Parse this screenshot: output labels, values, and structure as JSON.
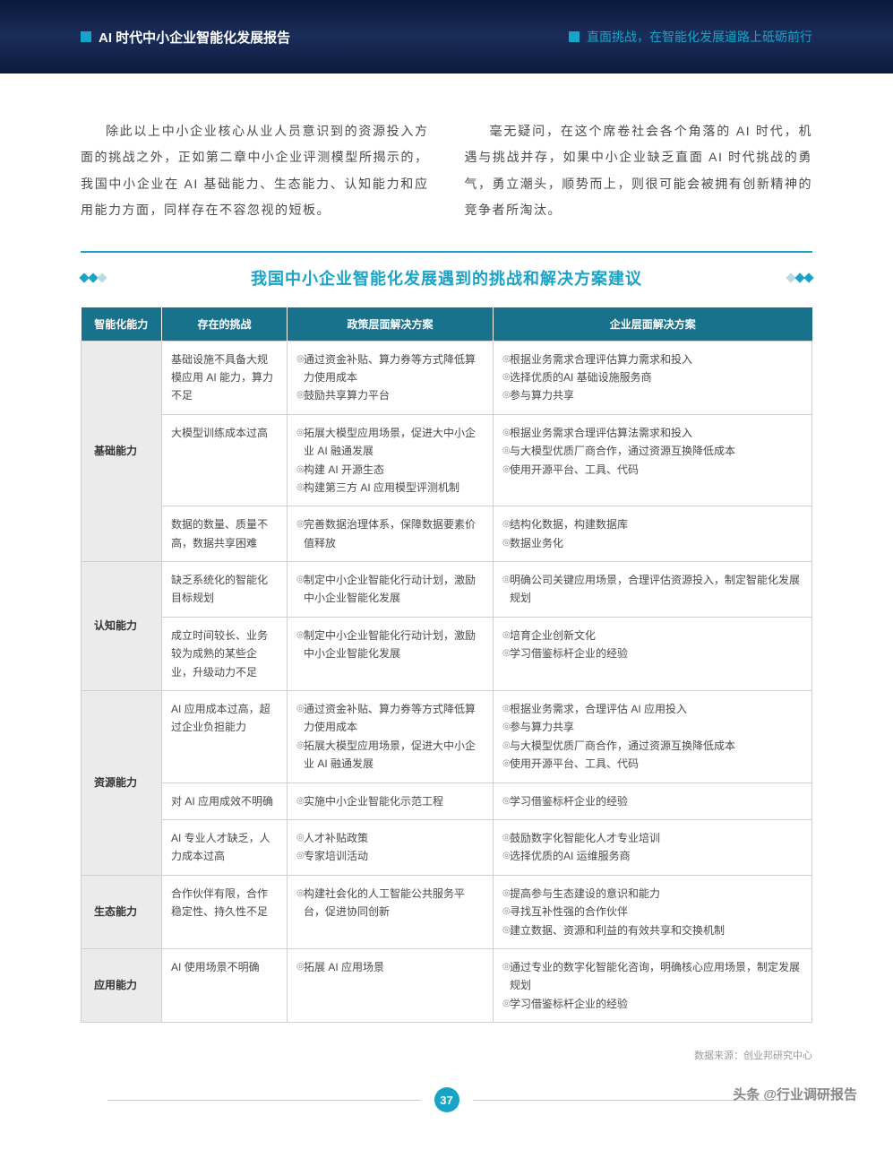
{
  "header": {
    "left_title": "AI 时代中小企业智能化发展报告",
    "right_title": "直面挑战，在智能化发展道路上砥砺前行"
  },
  "body": {
    "paragraph_left": "除此以上中小企业核心从业人员意识到的资源投入方面的挑战之外，正如第二章中小企业评测模型所揭示的，我国中小企业在 AI 基础能力、生态能力、认知能力和应用能力方面，同样存在不容忽视的短板。",
    "paragraph_right": "毫无疑问，在这个席卷社会各个角落的 AI 时代，机遇与挑战并存，如果中小企业缺乏直面 AI 时代挑战的勇气，勇立潮头，顺势而上，则很可能会被拥有创新精神的竞争者所淘汰。"
  },
  "section_title": "我国中小企业智能化发展遇到的挑战和解决方案建议",
  "table": {
    "headers": [
      "智能化能力",
      "存在的挑战",
      "政策层面解决方案",
      "企业层面解决方案"
    ],
    "groups": [
      {
        "category": "基础能力",
        "rows": [
          {
            "challenge": "基础设施不具备大规模应用 AI 能力，算力不足",
            "policy": [
              "通过资金补贴、算力券等方式降低算力使用成本",
              "鼓励共享算力平台"
            ],
            "enterprise": [
              "根据业务需求合理评估算力需求和投入",
              "选择优质的AI 基础设施服务商",
              "参与算力共享"
            ]
          },
          {
            "challenge": "大模型训练成本过高",
            "policy": [
              "拓展大模型应用场景，促进大中小企业 AI 融通发展",
              "构建 AI 开源生态",
              "构建第三方 AI 应用模型评测机制"
            ],
            "enterprise": [
              "根据业务需求合理评估算法需求和投入",
              "与大模型优质厂商合作，通过资源互换降低成本",
              "使用开源平台、工具、代码"
            ]
          },
          {
            "challenge": "数据的数量、质量不高，数据共享困难",
            "policy": [
              "完善数据治理体系，保障数据要素价值释放"
            ],
            "enterprise": [
              "结构化数据，构建数据库",
              "数据业务化"
            ]
          }
        ]
      },
      {
        "category": "认知能力",
        "rows": [
          {
            "challenge": "缺乏系统化的智能化目标规划",
            "policy": [
              "制定中小企业智能化行动计划，激励中小企业智能化发展"
            ],
            "enterprise": [
              "明确公司关键应用场景，合理评估资源投入，制定智能化发展规划"
            ]
          },
          {
            "challenge": "成立时间较长、业务较为成熟的某些企业，升级动力不足",
            "policy": [
              "制定中小企业智能化行动计划，激励中小企业智能化发展"
            ],
            "enterprise": [
              "培育企业创新文化",
              "学习借鉴标杆企业的经验"
            ]
          }
        ]
      },
      {
        "category": "资源能力",
        "rows": [
          {
            "challenge": "AI 应用成本过高，超过企业负担能力",
            "policy": [
              "通过资金补贴、算力券等方式降低算力使用成本",
              "拓展大模型应用场景，促进大中小企业 AI 融通发展"
            ],
            "enterprise": [
              "根据业务需求，合理评估 AI 应用投入",
              "参与算力共享",
              "与大模型优质厂商合作，通过资源互换降低成本",
              "使用开源平台、工具、代码"
            ]
          },
          {
            "challenge": "对 AI 应用成效不明确",
            "policy": [
              "实施中小企业智能化示范工程"
            ],
            "enterprise": [
              "学习借鉴标杆企业的经验"
            ]
          },
          {
            "challenge": "AI 专业人才缺乏，人力成本过高",
            "policy": [
              "人才补贴政策",
              "专家培训活动"
            ],
            "enterprise": [
              "鼓励数字化智能化人才专业培训",
              "选择优质的AI 运维服务商"
            ]
          }
        ]
      },
      {
        "category": "生态能力",
        "rows": [
          {
            "challenge": "合作伙伴有限，合作稳定性、持久性不足",
            "policy": [
              "构建社会化的人工智能公共服务平台，促进协同创新"
            ],
            "enterprise": [
              "提高参与生态建设的意识和能力",
              "寻找互补性强的合作伙伴",
              "建立数据、资源和利益的有效共享和交换机制"
            ]
          }
        ]
      },
      {
        "category": "应用能力",
        "rows": [
          {
            "challenge": "AI 使用场景不明确",
            "policy": [
              "拓展 AI 应用场景"
            ],
            "enterprise": [
              "通过专业的数字化智能化咨询，明确核心应用场景，制定发展规划",
              "学习借鉴标杆企业的经验"
            ]
          }
        ]
      }
    ]
  },
  "source": "数据来源：创业邦研究中心",
  "page_number": "37",
  "watermark": "头条 @行业调研报告",
  "colors": {
    "header_bg": "#0a1a3a",
    "accent": "#19a3c7",
    "table_header": "#19728c",
    "category_bg": "#ebebeb",
    "text": "#4a4a4a",
    "border": "#d0d0d0"
  }
}
